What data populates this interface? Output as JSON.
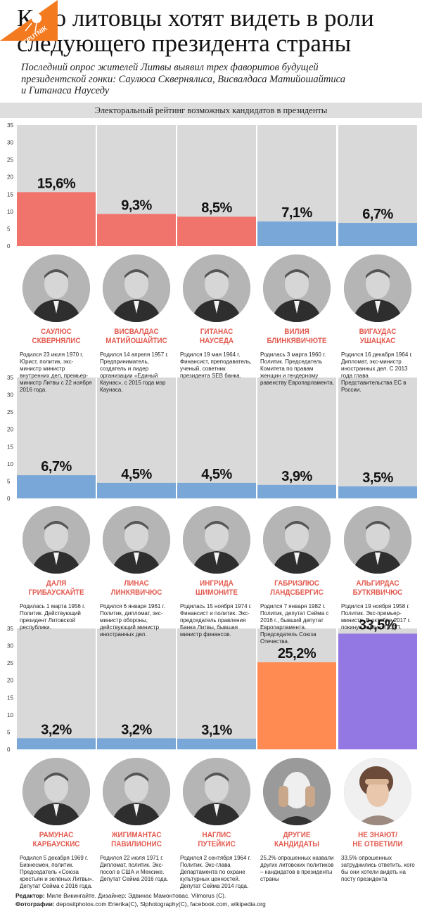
{
  "header": {
    "title": "Кого литовцы хотят видеть в роли следующего президента страны",
    "subtitle": "Последний опрос жителей Литвы выявил трех фаворитов будущей президентской гонки: Саулюса Сквернялиса, Висвалдаса Матийошайтиса и Гитанаса Науседу",
    "section_label": "Электоральный рейтинг возможных кандидатов в президенты"
  },
  "colors": {
    "favorite": "#f0746c",
    "other": "#78a7d8",
    "undecided_others": "#ff8a52",
    "dont_know": "#9378e4",
    "panel": "#d9d9d9",
    "name": "#e35a4f"
  },
  "chart_data": [
    {
      "type": "bar",
      "categories": [
        "Саулюс Сквернялис",
        "Висвалдас Матийошайтис",
        "Гитанас Науседа",
        "Вилия Блинкявичюте",
        "Вигаудас Ушацкас"
      ],
      "values": [
        15.6,
        9.3,
        8.5,
        7.1,
        6.7
      ],
      "labels": [
        "15,6%",
        "9,3%",
        "8,5%",
        "7,1%",
        "6,7%"
      ],
      "colors": [
        "favorite",
        "favorite",
        "favorite",
        "other",
        "other"
      ],
      "ylim": [
        0,
        35
      ],
      "yticks": [
        0,
        5,
        10,
        15,
        20,
        25,
        30,
        35
      ]
    },
    {
      "type": "bar",
      "categories": [
        "Даля Грибаускайте",
        "Линас Линкявичюс",
        "Ингрида Шимоните",
        "Габриэлюс Ландсбергис",
        "Альгирдас Буткявичюс"
      ],
      "values": [
        6.7,
        4.5,
        4.5,
        3.9,
        3.5
      ],
      "labels": [
        "6,7%",
        "4,5%",
        "4,5%",
        "3,9%",
        "3,5%"
      ],
      "colors": [
        "other",
        "other",
        "other",
        "other",
        "other"
      ],
      "ylim": [
        0,
        35
      ],
      "yticks": [
        0,
        5,
        10,
        15,
        20,
        25,
        30,
        35
      ]
    },
    {
      "type": "bar",
      "categories": [
        "Рамунас Карбаускис",
        "Жигимантас Павилионис",
        "Наглис Путейкис",
        "Другие кандидаты",
        "Не знают/не ответили"
      ],
      "values": [
        3.2,
        3.2,
        3.1,
        25.2,
        33.5
      ],
      "labels": [
        "3,2%",
        "3,2%",
        "3,1%",
        "25,2%",
        "33,5%"
      ],
      "colors": [
        "other",
        "other",
        "other",
        "undecided_others",
        "dont_know"
      ],
      "ylim": [
        0,
        35
      ],
      "yticks": [
        0,
        5,
        10,
        15,
        20,
        25,
        30,
        35
      ]
    }
  ],
  "candidates": [
    [
      {
        "name": "САУЛЮС\nСКВЕРНЯЛИС",
        "bio": "Родился 23 июля 1970 г. Юрист, политик, экс-министр министр внутренних дел, премьер-министр Литвы с 22 ноября 2016 года.",
        "photo": "person-photo"
      },
      {
        "name": "ВИСВАЛДАС\nМАТИЙОШАЙТИС",
        "bio": "Родился 14 апреля 1957 г. Предприниматель, создатель и лидер организации «Единый Каунас», с 2015 года мэр Каунаса.",
        "photo": "person-photo"
      },
      {
        "name": "ГИТАНАС\nНАУСЕДА",
        "bio": "Родился 19 мая 1964 г. Финансист, преподаватель, ученый, советник президента SEB банка.",
        "photo": "person-photo"
      },
      {
        "name": "ВИЛИЯ\nБЛИНКЯВИЧЮТЕ",
        "bio": "Родилась 3 марта 1960 г. Политик. Председатель Комитета по правам женщин и гендерному равенству Европарламента.",
        "photo": "person-photo"
      },
      {
        "name": "ВИГАУДАС\nУШАЦКАС",
        "bio": "Родился 16 декабря 1964 г. Дипломат, экс-министр иностранных дел. С 2013 года глава Представительства ЕС в России.",
        "photo": "person-photo"
      }
    ],
    [
      {
        "name": "ДАЛЯ\nГРИБАУСКАЙТЕ",
        "bio": "Родилась 1 марта 1956 г. Политик. Действующий президент Литовской республики.",
        "photo": "person-photo"
      },
      {
        "name": "ЛИНАС\nЛИНКЯВИЧЮС",
        "bio": "Родился 6 января 1961 г. Политик, дипломат, экс-министр обороны, действующий министр иностранных дел.",
        "photo": "person-photo"
      },
      {
        "name": "ИНГРИДА\nШИМОНИТЕ",
        "bio": "Родилась 15 ноября 1974 г. Финансист и политик. Экс-председатель правления Банка Литвы, бывшая министр финансов.",
        "photo": "person-photo"
      },
      {
        "name": "ГАБРИЭЛЮС\nЛАНДСБЕРГИС",
        "bio": "Родился 7 января 1982 г. Политик, депутат Сейма с 2016 г., бывший депутат Европарламента. Председатель Союза Отечества.",
        "photo": "person-photo"
      },
      {
        "name": "АЛЬГИРДАС\nБУТКЯВИЧЮС",
        "bio": "Родился 19 ноября 1958 г. Политик. Экс-премьер-министр. В октябре 2017 г. покинул партию ЛСДП.",
        "photo": "person-photo"
      }
    ],
    [
      {
        "name": "РАМУНАС\nКАРБАУСКИС",
        "bio": "Родился 5 декабря 1969 г. Бизнесмен, политик. Председатель «Союза крестьян и зелёных Литвы». Депутат Сейма с 2016 года.",
        "photo": "person-photo"
      },
      {
        "name": "ЖИГИМАНТАС\nПАВИЛИОНИС",
        "bio": "Родился 22 июля 1971 г. Дипломат, политик. Экс-посол в США и Мексике. Депутат Сейма 2016 года.",
        "photo": "person-photo"
      },
      {
        "name": "НАГЛИС\nПУТЕЙКИС",
        "bio": "Родился 2 сентября 1964 г. Политик. Экс-глава Департамента по охране культурных ценностей. Депутат Сейма 2014 года.",
        "photo": "person-photo"
      },
      {
        "name": "ДРУГИЕ\nКАНДИДАТЫ",
        "bio": "25,2% опрошенных назвали других литовских политиков – кандидатов в президенты страны",
        "photo": "masked-person-photo"
      },
      {
        "name": "НЕ ЗНАЮТ/\nНЕ ОТВЕТИЛИ",
        "bio": "33,5% опрошенных затруднились ответить, кого бы они хотели видеть на посту президента",
        "photo": "confused-person-photo"
      }
    ]
  ],
  "credits": {
    "line1_label": "Редактор:",
    "line1_text": "Миле Викингайте.  Дизайнер: Эдвинас Мамонтовас.  Vilmorus (С).",
    "line2_label": "Фотографии:",
    "line2_text": "depositphotos.com Erierika(C),  Slphotography(C),  facebook.com,  wikipedia.org"
  },
  "logo": {
    "text": "SPUTNIK"
  }
}
